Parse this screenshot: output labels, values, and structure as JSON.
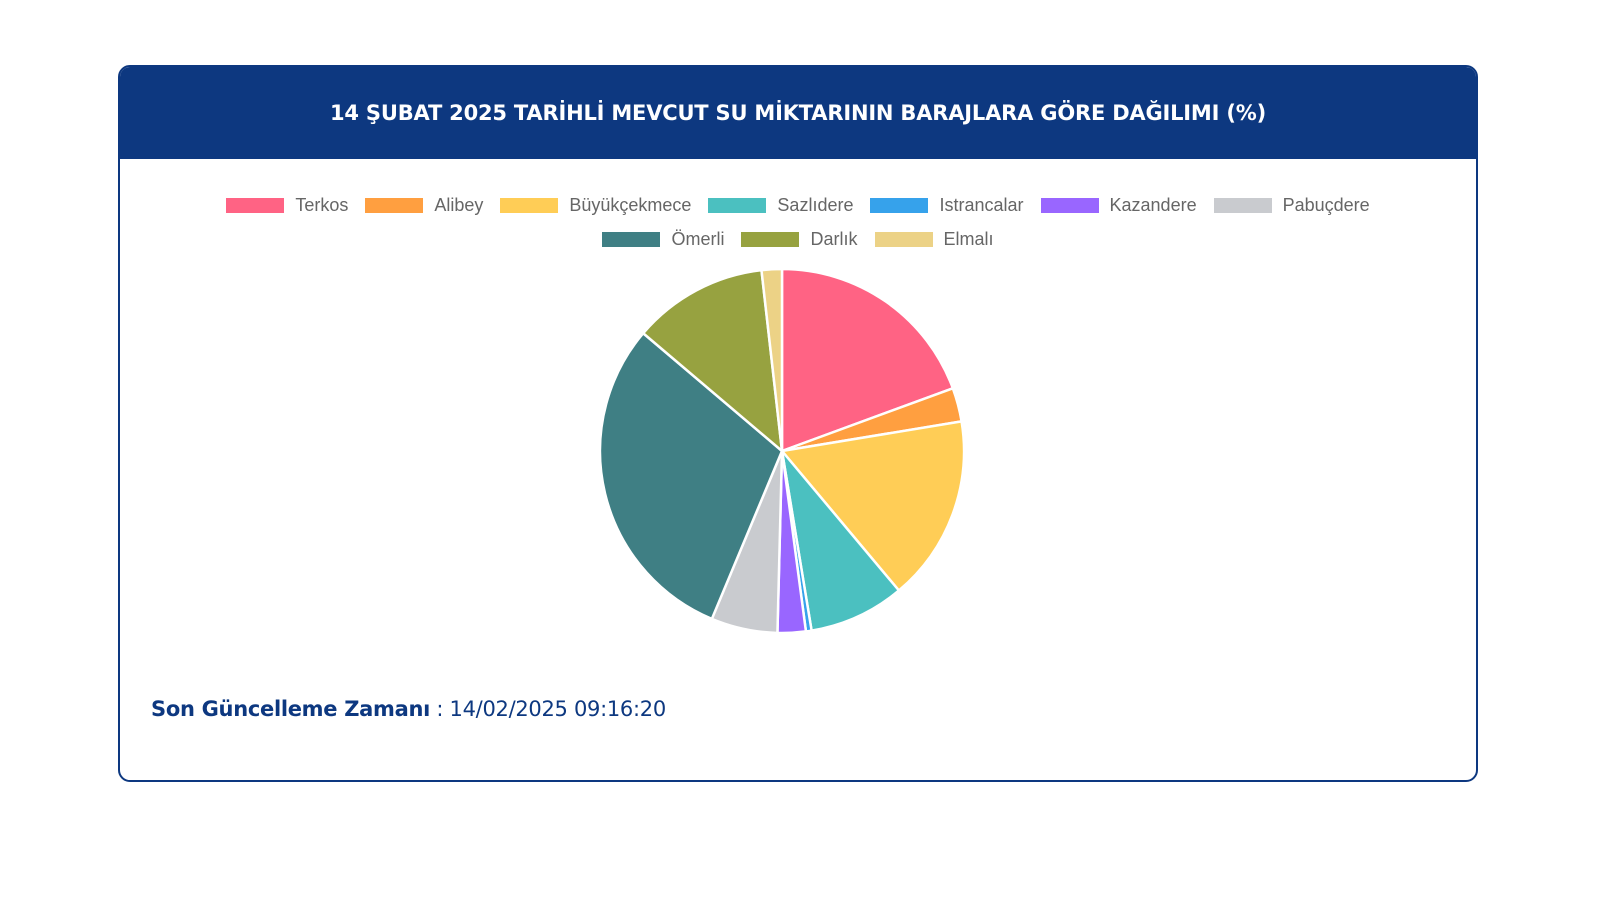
{
  "card": {
    "title": "14 ŞUBAT 2025 TARİHLİ MEVCUT SU MİKTARININ BARAJLARA GÖRE DAĞILIMI (%)"
  },
  "footer": {
    "update_label": "Son Güncelleme Zamanı",
    "update_separator": " : ",
    "update_value": "14/02/2025 09:16:20"
  },
  "chart_data": {
    "type": "pie",
    "title": "14 ŞUBAT 2025 TARİHLİ MEVCUT SU MİKTARININ BARAJLARA GÖRE DAĞILIMI (%)",
    "legend_position": "top",
    "categories": [
      "Terkos",
      "Alibey",
      "Büyükçekmece",
      "Sazlıdere",
      "Istrancalar",
      "Kazandere",
      "Pabuçdere",
      "Ömerli",
      "Darlık",
      "Elmalı"
    ],
    "values": [
      19.4,
      3.0,
      16.5,
      8.5,
      0.5,
      2.5,
      5.9,
      29.9,
      12.0,
      1.8
    ],
    "colors": [
      "#ff6384",
      "#ff9f40",
      "#ffcd56",
      "#4bc0c0",
      "#36a2eb",
      "#9966ff",
      "#c9cbcf",
      "#3f7f84",
      "#97a240",
      "#ecd286"
    ]
  }
}
